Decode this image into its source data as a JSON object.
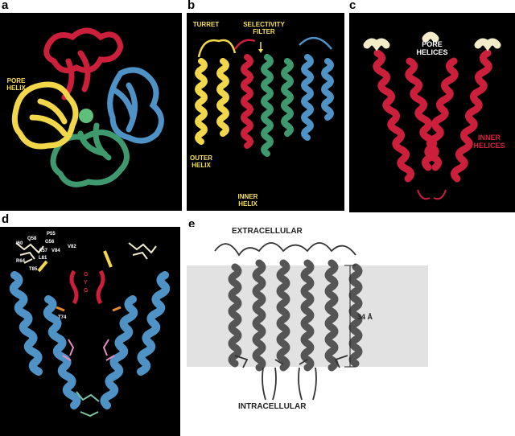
{
  "figure": {
    "panels": [
      {
        "letter": "a",
        "labels": [
          "PORE\nHELIX"
        ]
      },
      {
        "letter": "b",
        "labels": [
          "TURRET",
          "SELECTIVITY\nFILTER",
          "OUTER\nHELIX",
          "INNER\nHELIX"
        ]
      },
      {
        "letter": "c",
        "labels": [
          "PORE\nHELICES",
          "INNER\nHELICES"
        ]
      },
      {
        "letter": "d",
        "labels": [
          "I60",
          "Q58",
          "P55",
          "G56",
          "R64",
          "A57",
          "V84",
          "V82",
          "L81",
          "T85",
          "T74",
          "G",
          "Y",
          "G"
        ]
      },
      {
        "letter": "e",
        "labels": [
          "EXTRACELLULAR",
          "34 Å",
          "INTRACELLULAR"
        ]
      }
    ]
  },
  "colors": {
    "subunit_red": "#cc1f3c",
    "subunit_blue": "#4f93c6",
    "subunit_green": "#3e9a6e",
    "subunit_yellow": "#f2d74a",
    "pore_helix_cream": "#f4ecc8",
    "label_yellow": "#f5e05a",
    "label_red": "#d6203f",
    "membrane_band": "#e2e2e2"
  }
}
